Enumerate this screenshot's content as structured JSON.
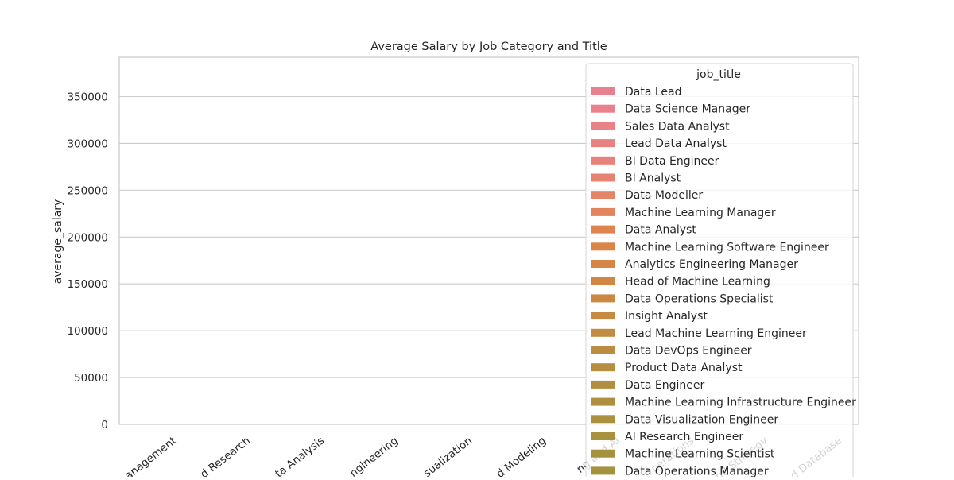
{
  "chart_data": {
    "type": "bar",
    "title": "Average Salary by Job Category and Title",
    "xlabel": "",
    "ylabel": "average_salary",
    "ylim": [
      0,
      392000
    ],
    "yticks": [
      0,
      50000,
      100000,
      150000,
      200000,
      250000,
      300000,
      350000
    ],
    "grid": true,
    "legend_position": "top-right",
    "categories": [
      "Leadership and Management",
      "Machine Learning and AI Research",
      "Data Analysis",
      "Data Engineering",
      "BI and Visualization",
      "Data Science and Modeling",
      "Machine Learning and AI",
      "Data Quality and Operations",
      "Data Architecture and Strategy",
      "Cloud and Database"
    ],
    "visible_tick_labels": [
      "anagement",
      "d Research",
      "ta Analysis",
      "ngineering",
      "sualization",
      "d Modeling",
      "ng and AI",
      "perations",
      "nd Strategy",
      "d Database"
    ],
    "legend": {
      "title": "job_title",
      "entries": [
        {
          "label": "Data Lead",
          "color": "#e8818f"
        },
        {
          "label": "Data Science Manager",
          "color": "#e8818b"
        },
        {
          "label": "Sales Data Analyst",
          "color": "#e88286"
        },
        {
          "label": "Lead Data Analyst",
          "color": "#e88281"
        },
        {
          "label": "BI Data Engineer",
          "color": "#e8827b"
        },
        {
          "label": "BI Analyst",
          "color": "#e78372"
        },
        {
          "label": "Data Modeller",
          "color": "#e58468"
        },
        {
          "label": "Machine Learning Manager",
          "color": "#e3835b"
        },
        {
          "label": "Data Analyst",
          "color": "#df844e"
        },
        {
          "label": "Machine Learning Software Engineer",
          "color": "#da8547"
        },
        {
          "label": "Analytics Engineering Manager",
          "color": "#d58645"
        },
        {
          "label": "Head of Machine Learning",
          "color": "#d08744"
        },
        {
          "label": "Data Operations Specialist",
          "color": "#cb8843"
        },
        {
          "label": "Insight Analyst",
          "color": "#c68a42"
        },
        {
          "label": "Lead Machine Learning Engineer",
          "color": "#c08b42"
        },
        {
          "label": "Data DevOps Engineer",
          "color": "#bb8c41"
        },
        {
          "label": "Product Data Analyst",
          "color": "#b68d41"
        },
        {
          "label": "Data Engineer",
          "color": "#b18e40"
        },
        {
          "label": "Machine Learning Infrastructure Engineer",
          "color": "#ad8f40"
        },
        {
          "label": "Data Visualization Engineer",
          "color": "#aa903f"
        },
        {
          "label": "AI Research Engineer",
          "color": "#a8913f"
        },
        {
          "label": "Machine Learning Scientist",
          "color": "#a6923e"
        },
        {
          "label": "Data Operations Manager",
          "color": "#a4933e"
        }
      ]
    }
  }
}
